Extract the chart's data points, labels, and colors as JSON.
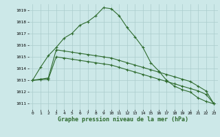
{
  "x": [
    0,
    1,
    2,
    3,
    4,
    5,
    6,
    7,
    8,
    9,
    10,
    11,
    12,
    13,
    14,
    15,
    16,
    17,
    18,
    19,
    20,
    21,
    22,
    23
  ],
  "line1": [
    1013.0,
    1014.1,
    1015.1,
    1015.8,
    1016.6,
    1017.0,
    1017.7,
    1018.0,
    1018.5,
    1019.2,
    1019.1,
    1018.5,
    1017.5,
    1016.7,
    1015.8,
    1014.5,
    1013.8,
    1013.0,
    1012.5,
    1012.2,
    1012.0,
    1011.5,
    1011.2,
    1011.0
  ],
  "line2": [
    1013.0,
    1013.1,
    1013.2,
    1015.6,
    1015.5,
    1015.4,
    1015.3,
    1015.2,
    1015.1,
    1015.0,
    1014.9,
    1014.7,
    1014.5,
    1014.3,
    1014.1,
    1013.9,
    1013.7,
    1013.5,
    1013.3,
    1013.1,
    1012.9,
    1012.5,
    1012.1,
    1011.0
  ],
  "line3": [
    1013.0,
    1013.05,
    1013.1,
    1015.0,
    1014.9,
    1014.8,
    1014.7,
    1014.6,
    1014.5,
    1014.4,
    1014.3,
    1014.1,
    1013.9,
    1013.7,
    1013.5,
    1013.3,
    1013.1,
    1012.9,
    1012.7,
    1012.5,
    1012.3,
    1012.1,
    1011.8,
    1011.0
  ],
  "line_color": "#2d6a2d",
  "bg_color": "#cce8e8",
  "grid_major_color": "#aacccc",
  "grid_minor_color": "#bbdddd",
  "ylim_min": 1010.5,
  "ylim_max": 1019.5,
  "yticks": [
    1011,
    1012,
    1013,
    1014,
    1015,
    1016,
    1017,
    1018,
    1019
  ],
  "xlabel": "Graphe pression niveau de la mer (hPa)",
  "marker": "+",
  "markersize": 3,
  "linewidth": 0.8
}
